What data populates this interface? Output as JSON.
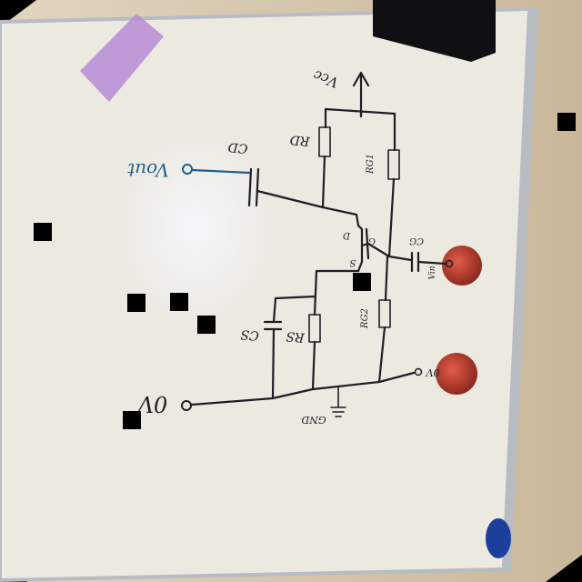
{
  "labels": {
    "vcc": "Vcc",
    "rd": "RD",
    "cd": "CD",
    "vout": "Vout",
    "rg1": "RG1",
    "cg": "CG",
    "vin": "Vin",
    "rg2": "RG2",
    "cs": "CS",
    "rs": "RS",
    "drain": "D",
    "gate": "G",
    "source": "S",
    "zero_v_right": "0V",
    "zero_v_left": "0V",
    "gnd": "GND"
  },
  "colors": {
    "whiteboard": "#ece9e1",
    "ink": "#1e1e24",
    "blue_ink": "#1f5f8f",
    "sticky_note": "#b88bd6",
    "magnet_red": "#c0392b",
    "magnet_blue": "#1b3f9a"
  }
}
